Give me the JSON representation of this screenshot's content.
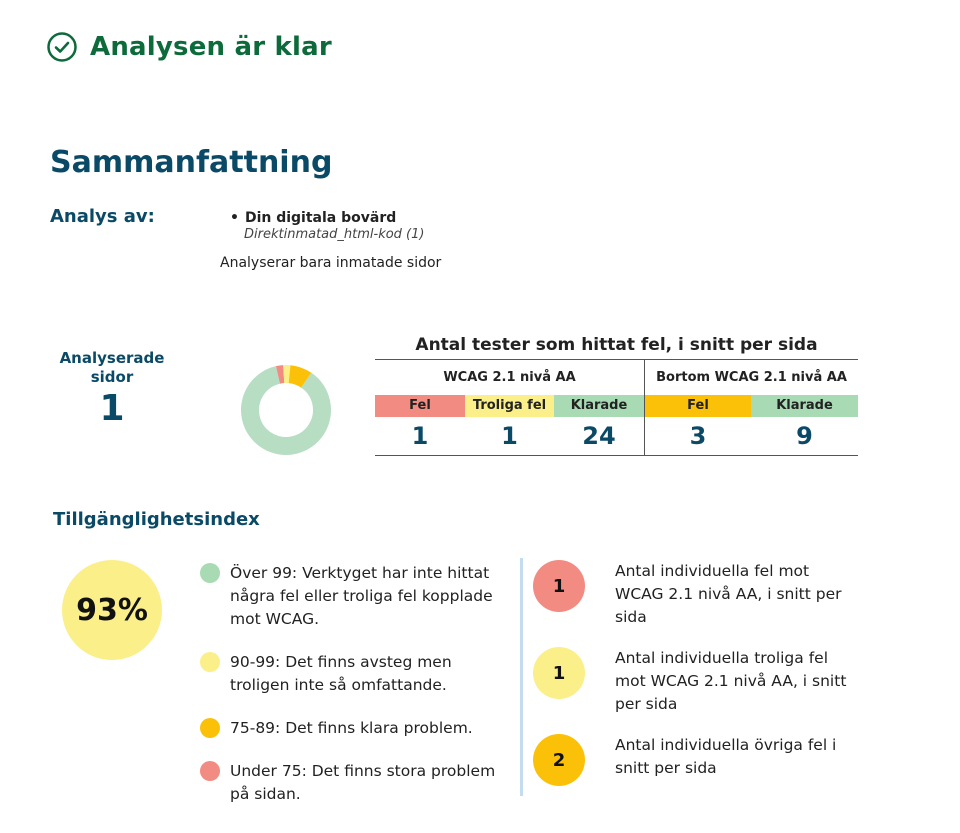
{
  "status": {
    "title": "Analysen är klar",
    "icon": "check-circle-icon",
    "color": "#0d6a3a"
  },
  "summary": {
    "title": "Sammanfattning",
    "analysis_label": "Analys av:",
    "site_name": "Din digitala bovärd",
    "site_source": "Direktinmatad_html-kod (1)",
    "note": "Analyserar bara inmatade sidor"
  },
  "pages": {
    "label": "Analyserade sidor",
    "value": "1"
  },
  "donut": {
    "segments": [
      {
        "name": "red",
        "fraction": 0.026,
        "color": "#f28b82"
      },
      {
        "name": "yellow",
        "fraction": 0.026,
        "color": "#fbef8a"
      },
      {
        "name": "amber",
        "fraction": 0.079,
        "color": "#fbc108"
      },
      {
        "name": "green",
        "fraction": 0.869,
        "color": "#b7ddc2"
      }
    ]
  },
  "tests": {
    "title": "Antal tester som hittat fel, i snitt per sida",
    "group1": {
      "label": "WCAG 2.1 nivå AA",
      "fel_label": "Fel",
      "fel_value": "1",
      "troliga_label": "Troliga fel",
      "troliga_value": "1",
      "klarade_label": "Klarade",
      "klarade_value": "24"
    },
    "group2": {
      "label": "Bortom WCAG 2.1 nivå AA",
      "fel_label": "Fel",
      "fel_value": "3",
      "klarade_label": "Klarade",
      "klarade_value": "9"
    }
  },
  "index": {
    "title": "Tillgänglighetsindex",
    "value": "93%",
    "legend": [
      {
        "color": "#a8dbb4",
        "text": "Över 99: Verktyget har inte hittat några fel eller troliga fel kopplade mot WCAG."
      },
      {
        "color": "#fbef8a",
        "text": "90-99: Det finns avsteg men troligen inte så omfattande."
      },
      {
        "color": "#fbc108",
        "text": "75-89: Det finns klara problem."
      },
      {
        "color": "#f28b82",
        "text": "Under 75: Det finns stora problem på sidan."
      }
    ],
    "counts": [
      {
        "value": "1",
        "color": "#f28b82",
        "text": "Antal individuella fel mot WCAG 2.1 nivå AA, i snitt per sida"
      },
      {
        "value": "1",
        "color": "#fbef8a",
        "text": "Antal individuella troliga fel mot WCAG 2.1 nivå AA, i snitt per sida"
      },
      {
        "value": "2",
        "color": "#fbc108",
        "text": "Antal individuella övriga fel i snitt per sida"
      }
    ]
  }
}
